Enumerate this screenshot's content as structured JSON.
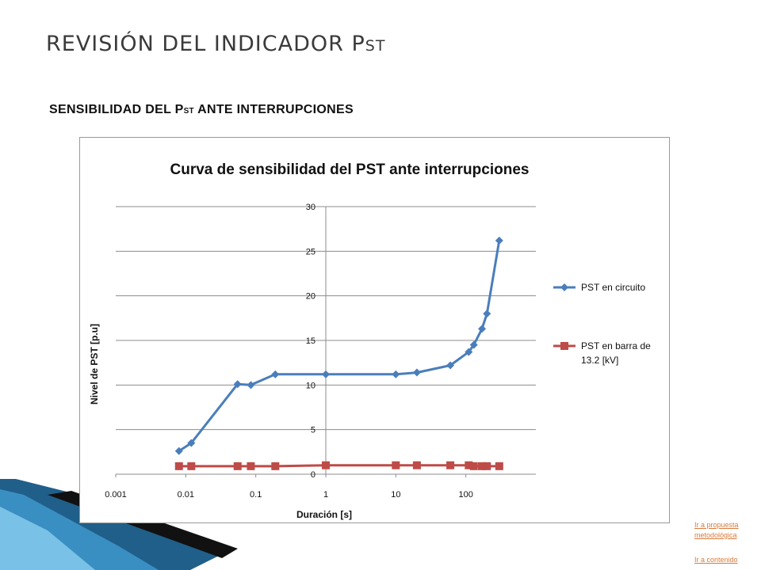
{
  "slide": {
    "title_main": "REVISIÓN DEL INDICADOR P",
    "title_sub": "ST",
    "subtitle_main": "SENSIBILIDAD  DEL P",
    "subtitle_sub": "ST",
    "subtitle_rest": " ANTE INTERRUPCIONES"
  },
  "links": {
    "propuesta": "Ir a propuesta metodológica",
    "contenido": "Ir a contenido"
  },
  "chart_data": {
    "type": "line",
    "title": "Curva de sensibilidad del PST ante interrupciones",
    "xlabel": "Duración  [s]",
    "ylabel": "Nivel de PST  [p.u]",
    "x_scale": "log",
    "xlim": [
      0.001,
      1000
    ],
    "ylim": [
      0,
      30
    ],
    "x_ticks": [
      "0.001",
      "0.01",
      "0.1",
      "1",
      "10",
      "100"
    ],
    "y_ticks": [
      "0",
      "5",
      "10",
      "15",
      "20",
      "25",
      "30"
    ],
    "grid": "horizontal",
    "legend": "right",
    "series": [
      {
        "name": "PST en circuito",
        "color": "#4a7ebb",
        "marker": "diamond",
        "x": [
          0.008,
          0.012,
          0.055,
          0.085,
          0.19,
          1,
          10,
          20,
          60,
          110,
          130,
          170,
          200,
          300
        ],
        "y": [
          2.6,
          3.5,
          10.1,
          10.0,
          11.2,
          11.2,
          11.2,
          11.4,
          12.2,
          13.7,
          14.5,
          16.3,
          18.0,
          26.2
        ]
      },
      {
        "name": "PST en barra de 13.2 [kV]",
        "color": "#be4b48",
        "marker": "square",
        "x": [
          0.008,
          0.012,
          0.055,
          0.085,
          0.19,
          1,
          10,
          20,
          60,
          110,
          130,
          170,
          200,
          300
        ],
        "y": [
          0.9,
          0.9,
          0.9,
          0.9,
          0.9,
          1.0,
          1.0,
          1.0,
          1.0,
          1.0,
          0.9,
          0.9,
          0.9,
          0.9
        ]
      }
    ]
  }
}
